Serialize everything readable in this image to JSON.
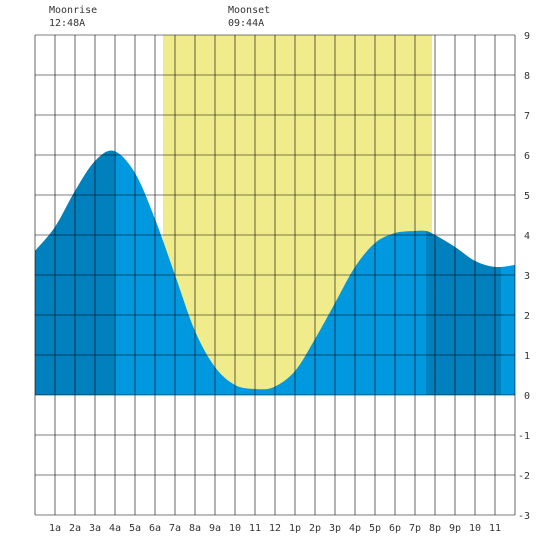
{
  "moon": {
    "moonrise_label": "Moonrise",
    "moonrise_time": "12:48A",
    "moonset_label": "Moonset",
    "moonset_time": "09:44A"
  },
  "colors": {
    "daylight": "#f0ec8c",
    "tide_fill": "#0099e0",
    "tide_night_fill": "#0080bc",
    "grid": "#000000",
    "background": "#ffffff"
  },
  "chart_data": {
    "type": "area",
    "x_unit": "hour",
    "xlim": [
      0,
      24
    ],
    "ylim": [
      -3,
      9
    ],
    "x_tick_labels": [
      "1a",
      "2a",
      "3a",
      "4a",
      "5a",
      "6a",
      "7a",
      "8a",
      "9a",
      "10",
      "11",
      "12",
      "1p",
      "2p",
      "3p",
      "4p",
      "5p",
      "6p",
      "7p",
      "8p",
      "9p",
      "10",
      "11"
    ],
    "y_tick_labels": [
      "9",
      "8",
      "7",
      "6",
      "5",
      "4",
      "3",
      "2",
      "1",
      "0",
      "-1",
      "-2",
      "-3"
    ],
    "grid": true,
    "daylight_start_hour": 6.4,
    "daylight_end_hour": 19.85,
    "night_shade_end_hour": 3.95,
    "night_shade_start_hour": 19.55,
    "night_shade2_end_hour": 23.3,
    "series": [
      {
        "x": [
          0,
          1,
          2,
          3,
          3.95,
          5,
          6,
          7,
          8,
          9,
          10,
          11,
          11.95,
          13,
          14,
          15,
          16,
          17,
          18,
          19,
          19.55,
          20,
          21,
          22,
          23,
          24
        ],
        "y": [
          3.6,
          4.2,
          5.1,
          5.85,
          6.1,
          5.55,
          4.4,
          3.0,
          1.6,
          0.7,
          0.25,
          0.15,
          0.2,
          0.6,
          1.4,
          2.3,
          3.2,
          3.8,
          4.05,
          4.1,
          4.1,
          4.0,
          3.7,
          3.35,
          3.2,
          3.25
        ]
      }
    ]
  }
}
